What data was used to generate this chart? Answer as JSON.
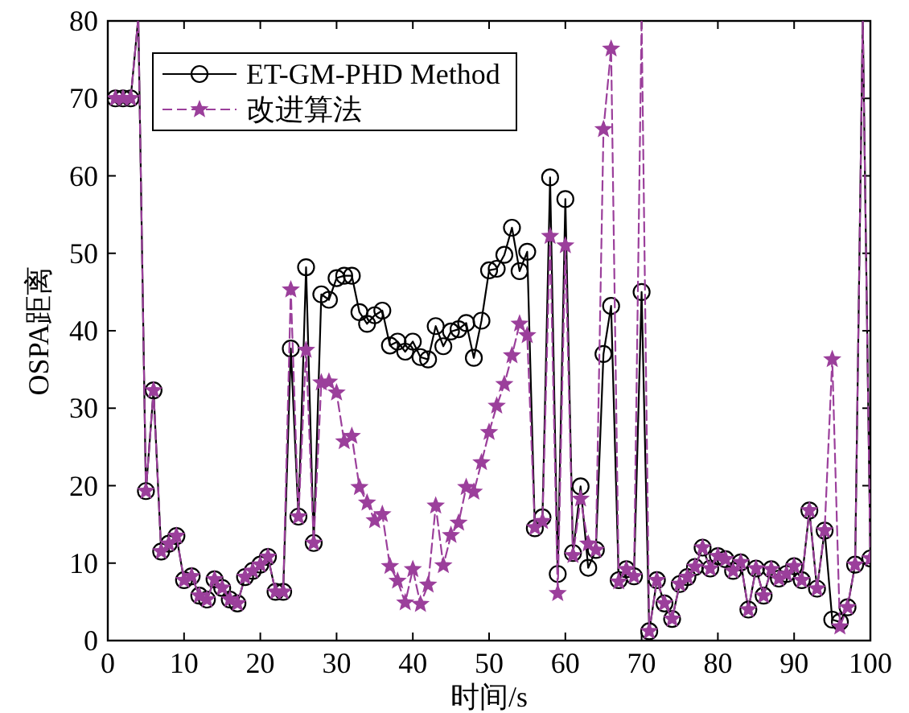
{
  "chart_data": {
    "type": "line",
    "xlabel": "时间/s",
    "ylabel": "OSPA距离",
    "xlim": [
      0,
      100
    ],
    "ylim": [
      0,
      80
    ],
    "xticks": [
      0,
      10,
      20,
      30,
      40,
      50,
      60,
      70,
      80,
      90,
      100
    ],
    "yticks": [
      0,
      10,
      20,
      30,
      40,
      50,
      60,
      70,
      80
    ],
    "grid": false,
    "legend": "top left",
    "x": [
      1,
      2,
      3,
      4,
      5,
      6,
      7,
      8,
      9,
      10,
      11,
      12,
      13,
      14,
      15,
      16,
      17,
      18,
      19,
      20,
      21,
      22,
      23,
      24,
      25,
      26,
      27,
      28,
      29,
      30,
      31,
      32,
      33,
      34,
      35,
      36,
      37,
      38,
      39,
      40,
      41,
      42,
      43,
      44,
      45,
      46,
      47,
      48,
      49,
      50,
      51,
      52,
      53,
      54,
      55,
      56,
      57,
      58,
      59,
      60,
      61,
      62,
      63,
      64,
      65,
      66,
      67,
      68,
      69,
      70,
      71,
      72,
      73,
      74,
      75,
      76,
      77,
      78,
      79,
      80,
      81,
      82,
      83,
      84,
      85,
      86,
      87,
      88,
      89,
      90,
      91,
      92,
      93,
      94,
      95,
      96,
      97,
      98,
      99,
      100
    ],
    "series": [
      {
        "name": "ET-GM-PHD Method",
        "color": "#000000",
        "marker": "circle",
        "line_style": "solid",
        "values": [
          70,
          70,
          70,
          null,
          19.3,
          32.3,
          11.5,
          12.5,
          13.5,
          7.8,
          8.3,
          5.8,
          5.3,
          7.9,
          6.8,
          5.3,
          4.8,
          8.2,
          9,
          9.8,
          10.8,
          6.3,
          6.3,
          37.7,
          16,
          48.2,
          12.6,
          44.7,
          44,
          46.8,
          47.1,
          47.1,
          42.4,
          40.9,
          42,
          42.6,
          38.1,
          38.6,
          37.3,
          38.6,
          36.6,
          36.3,
          40.6,
          38,
          39.9,
          40.2,
          41,
          36.5,
          41.3,
          47.8,
          48,
          49.8,
          53.3,
          47.7,
          50.2,
          14.5,
          15.9,
          59.8,
          8.6,
          57,
          11.3,
          19.9,
          9.4,
          11.7,
          37,
          43.2,
          7.8,
          9.2,
          8.3,
          45,
          1.2,
          7.8,
          4.8,
          2.8,
          7.3,
          8.2,
          9.5,
          12,
          9.3,
          10.9,
          10.5,
          9,
          10.1,
          4,
          9.3,
          5.8,
          9.2,
          8,
          8.6,
          9.6,
          7.8,
          16.8,
          6.7,
          14.2,
          2.7,
          2.4,
          4.3,
          9.8,
          null,
          10.6
        ]
      },
      {
        "name": "改进算法",
        "color": "#9b3f9b",
        "marker": "star",
        "line_style": "dashed",
        "values": [
          70,
          70,
          70,
          null,
          19.3,
          32.3,
          11.5,
          12.5,
          13.5,
          7.8,
          8.3,
          5.8,
          5.3,
          7.9,
          6.8,
          5.3,
          4.8,
          8.2,
          9,
          9.8,
          10.8,
          6.3,
          6.3,
          45.3,
          16,
          37.5,
          12.6,
          33.3,
          33.4,
          32,
          25.7,
          26.4,
          19.8,
          17.8,
          15.5,
          16.3,
          9.6,
          7.7,
          4.9,
          9.2,
          4.7,
          7.2,
          17.4,
          9.7,
          13.6,
          15.2,
          19.8,
          19.2,
          23,
          26.9,
          30.3,
          33.1,
          36.8,
          40.9,
          39.4,
          14.6,
          15.4,
          52.2,
          6.1,
          51,
          11,
          18.3,
          12.5,
          11.7,
          66,
          76.4,
          7.6,
          9.2,
          8.3,
          null,
          1.2,
          7.8,
          4.8,
          2.8,
          7.3,
          8.2,
          9.5,
          12,
          9.3,
          10.9,
          10.5,
          9,
          10.1,
          4,
          9.3,
          5.8,
          9.2,
          8,
          8.6,
          9.6,
          7.8,
          16.8,
          6.7,
          14.2,
          36.3,
          1.8,
          4.3,
          9.8,
          null,
          10.6
        ]
      }
    ]
  }
}
